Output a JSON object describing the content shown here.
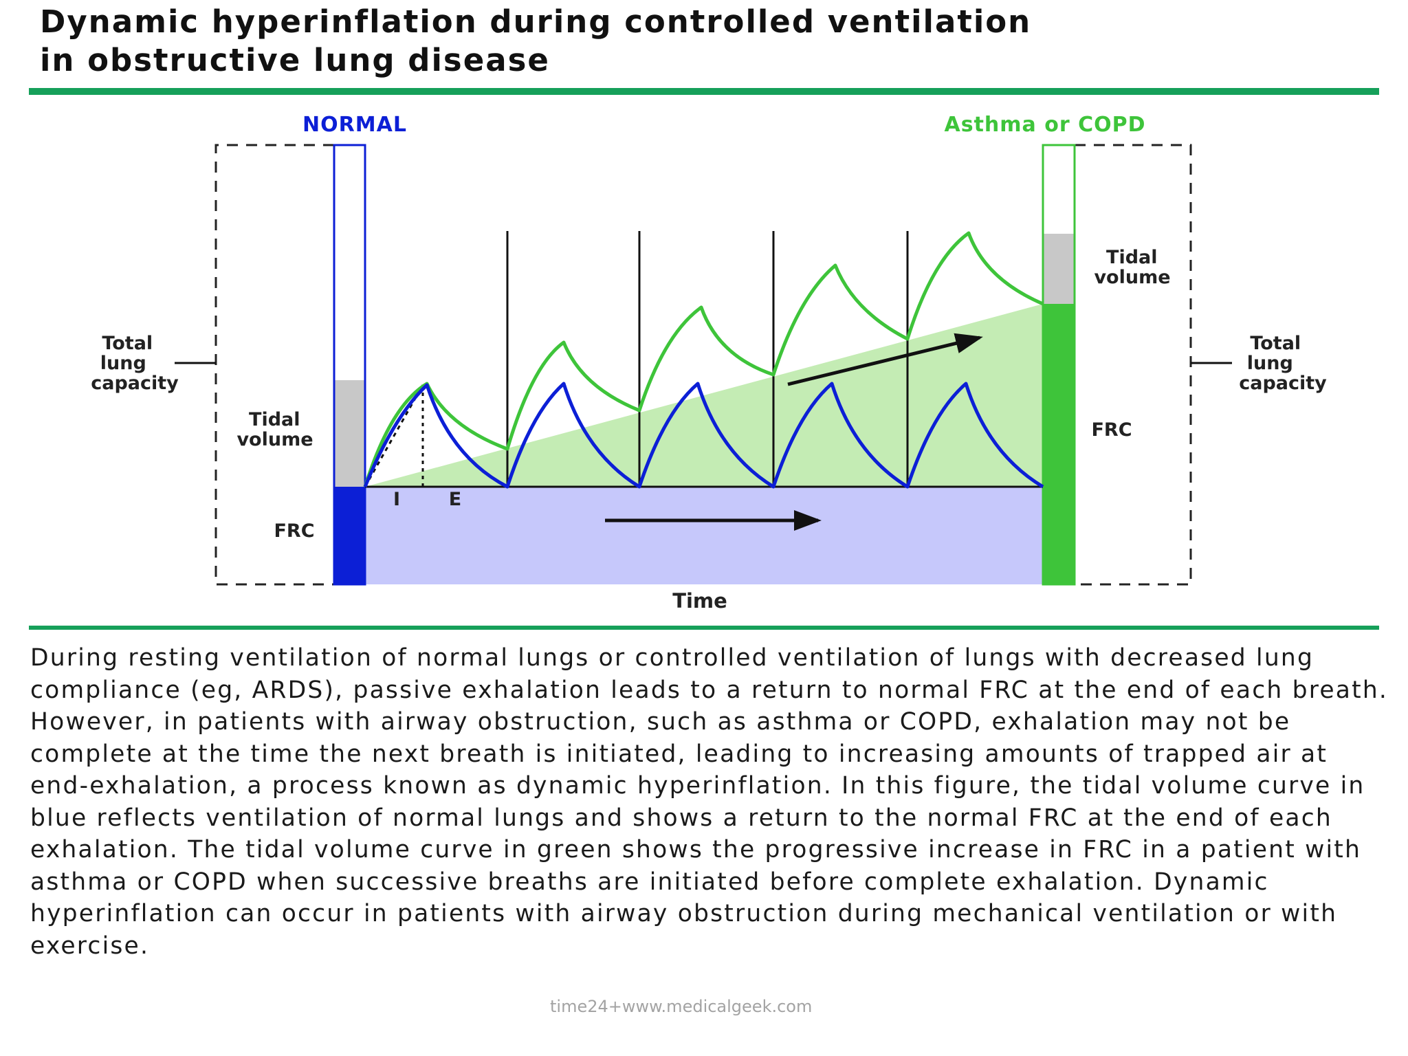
{
  "title_line1": "Dynamic hyperinflation during controlled ventilation",
  "title_line2": "in obstructive lung disease",
  "diagram": {
    "normal_label": "NORMAL",
    "copd_label": "Asthma or COPD",
    "tlc_label_left": [
      "Total",
      "lung",
      "capacity"
    ],
    "tlc_label_right": [
      "Total",
      "lung",
      "capacity"
    ],
    "tidal_label_left": [
      "Tidal",
      "volume"
    ],
    "tidal_label_right": [
      "Tidal",
      "volume"
    ],
    "frc_label_left": "FRC",
    "frc_label_right": "FRC",
    "inspiration_label": "I",
    "expiration_label": "E",
    "x_axis_label": "Time",
    "colors": {
      "normal": "#0c1fd6",
      "copd": "#3ec43a",
      "trapped_air": "#c4ecb4",
      "normal_frc_area": "#c6c8fb",
      "tidal_bar": "#c8c8c8",
      "rule": "#16a05a"
    }
  },
  "description": "During resting ventilation of normal lungs or controlled ventilation of lungs with decreased lung compliance (eg, ARDS), passive exhalation leads to a return to normal FRC at the end of each breath. However, in patients with airway obstruction, such as asthma or COPD, exhalation may not be complete at the time the next breath is initiated, leading to increasing amounts of trapped air at end-exhalation, a process known as dynamic hyperinflation. In this figure, the tidal volume curve in blue reflects ventilation of normal lungs and shows a return to the normal FRC at the end of each exhalation. The tidal volume curve in green shows the progressive increase in FRC in a patient with asthma or COPD when successive breaths are initiated before complete exhalation. Dynamic hyperinflation can occur in patients with airway obstruction during mechanical ventilation or with exercise.",
  "watermark": "time24+www.medicalgeek.com"
}
